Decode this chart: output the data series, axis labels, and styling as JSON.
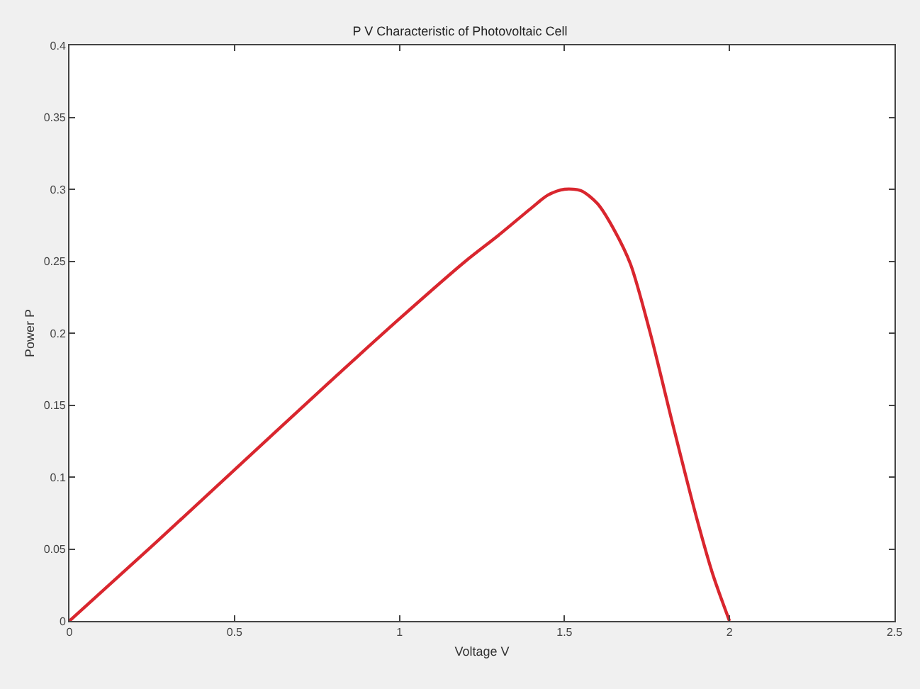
{
  "chart_data": {
    "type": "line",
    "title": "P V Characteristic of Photovoltaic Cell",
    "xlabel": "Voltage V",
    "ylabel": "Power P",
    "x": [
      0,
      0.25,
      0.5,
      0.75,
      1.0,
      1.2,
      1.3,
      1.4,
      1.45,
      1.5,
      1.55,
      1.6,
      1.65,
      1.7,
      1.76,
      1.83,
      1.9,
      1.95,
      2.0
    ],
    "series": [
      {
        "color": "#d9262e",
        "values": [
          0,
          0.052,
          0.105,
          0.158,
          0.21,
          0.25,
          0.268,
          0.287,
          0.296,
          0.3,
          0.299,
          0.29,
          0.272,
          0.248,
          0.2,
          0.135,
          0.072,
          0.032,
          0
        ]
      }
    ],
    "xlim": [
      0,
      2.5
    ],
    "xticks": [
      0,
      0.5,
      1,
      1.5,
      2,
      2.5
    ],
    "ylim": [
      0,
      0.4
    ],
    "yticks": [
      0,
      0.05,
      0.1,
      0.15,
      0.2,
      0.25,
      0.3,
      0.35,
      0.4
    ],
    "legend": false,
    "marker": "none",
    "line_style": "solid"
  }
}
